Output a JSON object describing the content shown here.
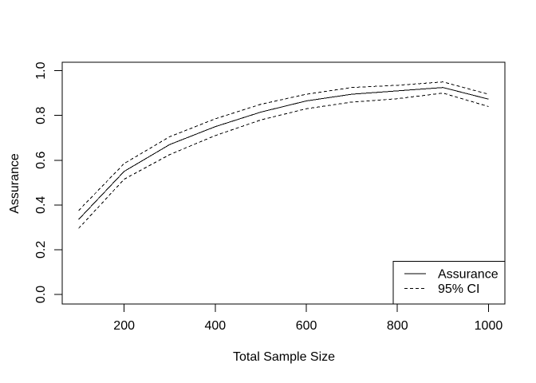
{
  "figure": {
    "background": "#ffffff",
    "line_color": "#000000",
    "text_color": "#000000"
  },
  "chart_data": {
    "type": "line",
    "title": "",
    "xlabel": "Total Sample Size",
    "ylabel": "Assurance",
    "x": [
      100,
      200,
      300,
      400,
      500,
      600,
      700,
      800,
      900,
      1000
    ],
    "series": [
      {
        "name": "Assurance",
        "style": "solid",
        "color": "#000000",
        "values": [
          0.335,
          0.55,
          0.67,
          0.75,
          0.815,
          0.865,
          0.895,
          0.91,
          0.925,
          0.873
        ]
      },
      {
        "name": "95% CI upper",
        "style": "dashed",
        "color": "#000000",
        "values": [
          0.375,
          0.585,
          0.705,
          0.785,
          0.85,
          0.895,
          0.925,
          0.935,
          0.95,
          0.895
        ]
      },
      {
        "name": "95% CI lower",
        "style": "dashed",
        "color": "#000000",
        "values": [
          0.295,
          0.515,
          0.625,
          0.71,
          0.78,
          0.83,
          0.86,
          0.875,
          0.9,
          0.84
        ]
      }
    ],
    "xlim": [
      64,
      1036
    ],
    "ylim": [
      -0.043,
      1.038
    ],
    "xticks": [
      "200",
      "400",
      "600",
      "800",
      "1000"
    ],
    "yticks": [
      "0.0",
      "0.2",
      "0.4",
      "0.6",
      "0.8",
      "1.0"
    ],
    "grid": false,
    "legend": {
      "position": "bottomright",
      "entries": [
        {
          "label": "Assurance",
          "style": "solid"
        },
        {
          "label": "95% CI",
          "style": "dashed"
        }
      ]
    }
  }
}
